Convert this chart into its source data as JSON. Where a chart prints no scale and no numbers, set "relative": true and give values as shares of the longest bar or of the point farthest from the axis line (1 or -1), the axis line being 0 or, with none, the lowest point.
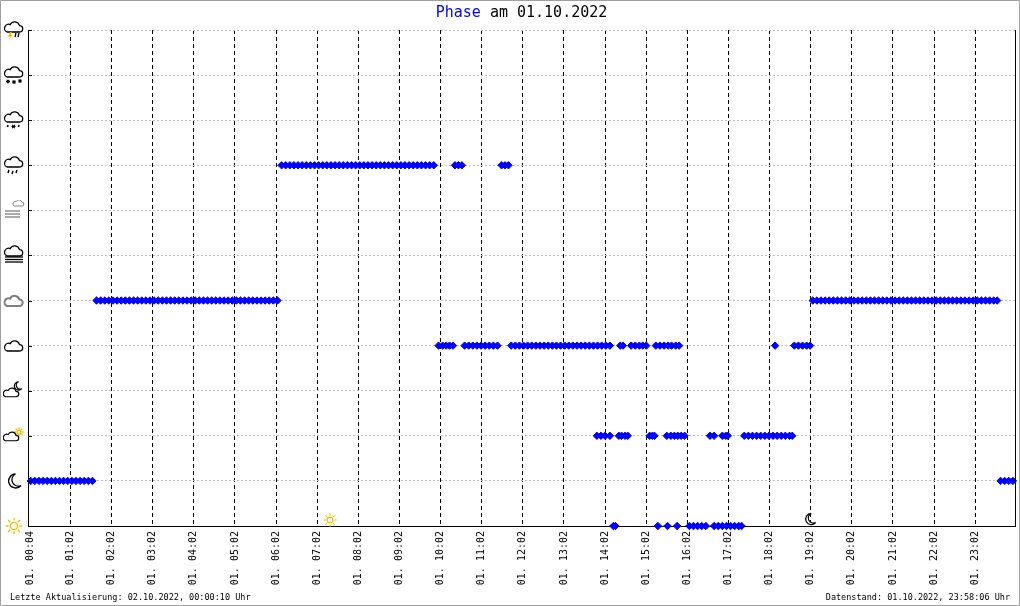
{
  "chart_data": {
    "type": "scatter",
    "title": "Phase am 01.10.2022",
    "color": "#0000ff",
    "marker": "diamond",
    "grid": true,
    "relative": true,
    "tick_labels": "x",
    "xlim": [
      "2022-10-01T00:00",
      "2022-10-02T00:00"
    ],
    "xticks": [
      {
        "value": "2022-10-01T00:04",
        "label": "01. 00:04"
      },
      {
        "value": "2022-10-01T01:02",
        "label": "01. 01:02"
      },
      {
        "value": "2022-10-01T02:02",
        "label": "01. 02:02"
      },
      {
        "value": "2022-10-01T03:02",
        "label": "01. 03:02"
      },
      {
        "value": "2022-10-01T04:02",
        "label": "01. 04:02"
      },
      {
        "value": "2022-10-01T05:02",
        "label": "01. 05:02"
      },
      {
        "value": "2022-10-01T06:02",
        "label": "01. 06:02"
      },
      {
        "value": "2022-10-01T07:02",
        "label": "01. 07:02"
      },
      {
        "value": "2022-10-01T08:02",
        "label": "01. 08:02"
      },
      {
        "value": "2022-10-01T09:02",
        "label": "01. 09:02"
      },
      {
        "value": "2022-10-01T10:02",
        "label": "01. 10:02"
      },
      {
        "value": "2022-10-01T11:02",
        "label": "01. 11:02"
      },
      {
        "value": "2022-10-01T12:02",
        "label": "01. 12:02"
      },
      {
        "value": "2022-10-01T13:02",
        "label": "01. 13:02"
      },
      {
        "value": "2022-10-01T14:02",
        "label": "01. 14:02"
      },
      {
        "value": "2022-10-01T15:02",
        "label": "01. 15:02"
      },
      {
        "value": "2022-10-01T16:02",
        "label": "01. 16:02"
      },
      {
        "value": "2022-10-01T17:02",
        "label": "01. 17:02"
      },
      {
        "value": "2022-10-01T18:02",
        "label": "01. 18:02"
      },
      {
        "value": "2022-10-01T19:02",
        "label": "01. 19:02"
      },
      {
        "value": "2022-10-01T20:02",
        "label": "01. 20:02"
      },
      {
        "value": "2022-10-01T21:02",
        "label": "01. 21:02"
      },
      {
        "value": "2022-10-01T22:02",
        "label": "01. 22:02"
      },
      {
        "value": "2022-10-01T23:02",
        "label": "01. 23:02"
      }
    ],
    "x": [
      "2022-10-01T00:04",
      "2022-10-01T00:10",
      "2022-10-01T00:16",
      "2022-10-01T00:22",
      "2022-10-01T00:28",
      "2022-10-01T00:34",
      "2022-10-01T00:40",
      "2022-10-01T00:46",
      "2022-10-01T00:52",
      "2022-10-01T00:58",
      "2022-10-01T01:04",
      "2022-10-01T01:10",
      "2022-10-01T01:16",
      "2022-10-01T01:22",
      "2022-10-01T01:28",
      "2022-10-01T01:34",
      "2022-10-01T01:40",
      "2022-10-01T01:46",
      "2022-10-01T01:52",
      "2022-10-01T01:58",
      "2022-10-01T02:04",
      "2022-10-01T02:10",
      "2022-10-01T02:16",
      "2022-10-01T02:22",
      "2022-10-01T02:28",
      "2022-10-01T02:34",
      "2022-10-01T02:40",
      "2022-10-01T02:46",
      "2022-10-01T02:52",
      "2022-10-01T02:58",
      "2022-10-01T03:04",
      "2022-10-01T03:10",
      "2022-10-01T03:16",
      "2022-10-01T03:22",
      "2022-10-01T03:28",
      "2022-10-01T03:34",
      "2022-10-01T03:40",
      "2022-10-01T03:46",
      "2022-10-01T03:52",
      "2022-10-01T03:58",
      "2022-10-01T04:04",
      "2022-10-01T04:10",
      "2022-10-01T04:16",
      "2022-10-01T04:22",
      "2022-10-01T04:28",
      "2022-10-01T04:34",
      "2022-10-01T04:40",
      "2022-10-01T04:46",
      "2022-10-01T04:52",
      "2022-10-01T04:58",
      "2022-10-01T05:04",
      "2022-10-01T05:10",
      "2022-10-01T05:16",
      "2022-10-01T05:22",
      "2022-10-01T05:28",
      "2022-10-01T05:34",
      "2022-10-01T05:40",
      "2022-10-01T05:46",
      "2022-10-01T05:52",
      "2022-10-01T05:58",
      "2022-10-01T06:04",
      "2022-10-01T06:10",
      "2022-10-01T06:16",
      "2022-10-01T06:22",
      "2022-10-01T06:28",
      "2022-10-01T06:34",
      "2022-10-01T06:40",
      "2022-10-01T06:46",
      "2022-10-01T06:52",
      "2022-10-01T06:58",
      "2022-10-01T07:04",
      "2022-10-01T07:10",
      "2022-10-01T07:16",
      "2022-10-01T07:22",
      "2022-10-01T07:28",
      "2022-10-01T07:34",
      "2022-10-01T07:40",
      "2022-10-01T07:46",
      "2022-10-01T07:52",
      "2022-10-01T07:58",
      "2022-10-01T08:04",
      "2022-10-01T08:10",
      "2022-10-01T08:16",
      "2022-10-01T08:22",
      "2022-10-01T08:28",
      "2022-10-01T08:34",
      "2022-10-01T08:40",
      "2022-10-01T08:46",
      "2022-10-01T08:52",
      "2022-10-01T08:58",
      "2022-10-01T09:04",
      "2022-10-01T09:10",
      "2022-10-01T09:16",
      "2022-10-01T09:22",
      "2022-10-01T09:28",
      "2022-10-01T09:34",
      "2022-10-01T09:40",
      "2022-10-01T09:46",
      "2022-10-01T09:52",
      "2022-10-01T09:59",
      "2022-10-01T10:05",
      "2022-10-01T10:10",
      "2022-10-01T10:15",
      "2022-10-01T10:20",
      "2022-10-01T10:23",
      "2022-10-01T10:28",
      "2022-10-01T10:33",
      "2022-10-01T10:37",
      "2022-10-01T10:43",
      "2022-10-01T10:49",
      "2022-10-01T10:55",
      "2022-10-01T11:01",
      "2022-10-01T11:07",
      "2022-10-01T11:13",
      "2022-10-01T11:19",
      "2022-10-01T11:25",
      "2022-10-01T11:31",
      "2022-10-01T11:36",
      "2022-10-01T11:41",
      "2022-10-01T11:45",
      "2022-10-01T11:51",
      "2022-10-01T11:57",
      "2022-10-01T12:03",
      "2022-10-01T12:09",
      "2022-10-01T12:15",
      "2022-10-01T12:21",
      "2022-10-01T12:27",
      "2022-10-01T12:33",
      "2022-10-01T12:39",
      "2022-10-01T12:45",
      "2022-10-01T12:51",
      "2022-10-01T12:57",
      "2022-10-01T13:03",
      "2022-10-01T13:09",
      "2022-10-01T13:15",
      "2022-10-01T13:21",
      "2022-10-01T13:27",
      "2022-10-01T13:33",
      "2022-10-01T13:39",
      "2022-10-01T13:45",
      "2022-10-01T13:51",
      "2022-10-01T13:57",
      "2022-10-01T14:03",
      "2022-10-01T14:09",
      "2022-10-01T13:50",
      "2022-10-01T13:56",
      "2022-10-01T14:02",
      "2022-10-01T14:09",
      "2022-10-01T14:14",
      "2022-10-01T14:17",
      "2022-10-01T14:22",
      "2022-10-01T14:26",
      "2022-10-01T14:31",
      "2022-10-01T14:35",
      "2022-10-01T14:24",
      "2022-10-01T14:28",
      "2022-10-01T14:40",
      "2022-10-01T14:46",
      "2022-10-01T14:52",
      "2022-10-01T14:57",
      "2022-10-01T15:02",
      "2022-10-01T15:07",
      "2022-10-01T15:11",
      "2022-10-01T15:14",
      "2022-10-01T15:16",
      "2022-10-01T15:22",
      "2022-10-01T15:28",
      "2022-10-01T15:34",
      "2022-10-01T15:39",
      "2022-10-01T15:45",
      "2022-10-01T15:50",
      "2022-10-01T15:19",
      "2022-10-01T15:32",
      "2022-10-01T15:38",
      "2022-10-01T15:43",
      "2022-10-01T15:48",
      "2022-10-01T15:53",
      "2022-10-01T15:58",
      "2022-10-01T15:33",
      "2022-10-01T15:47",
      "2022-10-01T16:05",
      "2022-10-01T16:11",
      "2022-10-01T16:17",
      "2022-10-01T16:23",
      "2022-10-01T16:29",
      "2022-10-01T16:35",
      "2022-10-01T16:41",
      "2022-10-01T16:41",
      "2022-10-01T16:47",
      "2022-10-01T16:53",
      "2022-10-01T16:59",
      "2022-10-01T17:05",
      "2022-10-01T17:11",
      "2022-10-01T17:17",
      "2022-10-01T17:21",
      "2022-10-01T16:53",
      "2022-10-01T16:58",
      "2022-10-01T17:01",
      "2022-10-01T17:25",
      "2022-10-01T17:31",
      "2022-10-01T17:37",
      "2022-10-01T17:43",
      "2022-10-01T17:49",
      "2022-10-01T17:55",
      "2022-10-01T18:01",
      "2022-10-01T18:07",
      "2022-10-01T18:13",
      "2022-10-01T18:19",
      "2022-10-01T18:25",
      "2022-10-01T18:31",
      "2022-10-01T18:35",
      "2022-10-01T18:10",
      "2022-10-01T18:38",
      "2022-10-01T18:44",
      "2022-10-01T18:50",
      "2022-10-01T18:56",
      "2022-10-01T19:01",
      "2022-10-01T19:05",
      "2022-10-01T19:11",
      "2022-10-01T19:17",
      "2022-10-01T19:23",
      "2022-10-01T19:29",
      "2022-10-01T19:35",
      "2022-10-01T19:41",
      "2022-10-01T19:47",
      "2022-10-01T19:53",
      "2022-10-01T19:59",
      "2022-10-01T20:05",
      "2022-10-01T20:11",
      "2022-10-01T20:17",
      "2022-10-01T20:23",
      "2022-10-01T20:29",
      "2022-10-01T20:35",
      "2022-10-01T20:41",
      "2022-10-01T20:47",
      "2022-10-01T20:53",
      "2022-10-01T20:59",
      "2022-10-01T21:05",
      "2022-10-01T21:11",
      "2022-10-01T21:17",
      "2022-10-01T21:23",
      "2022-10-01T21:29",
      "2022-10-01T21:35",
      "2022-10-01T21:41",
      "2022-10-01T21:47",
      "2022-10-01T21:53",
      "2022-10-01T21:59",
      "2022-10-01T22:05",
      "2022-10-01T22:11",
      "2022-10-01T22:17",
      "2022-10-01T22:23",
      "2022-10-01T22:29",
      "2022-10-01T22:35",
      "2022-10-01T22:41",
      "2022-10-01T22:47",
      "2022-10-01T22:53",
      "2022-10-01T22:59",
      "2022-10-01T23:05",
      "2022-10-01T23:11",
      "2022-10-01T23:17",
      "2022-10-01T23:23",
      "2022-10-01T23:29",
      "2022-10-01T23:34",
      "2022-10-01T23:39",
      "2022-10-01T23:45",
      "2022-10-01T23:51",
      "2022-10-01T23:57"
    ],
    "values": [
      0.125,
      0.125,
      0.125,
      0.125,
      0.125,
      0.125,
      0.125,
      0.125,
      0.125,
      0.125,
      0.125,
      0.125,
      0.125,
      0.125,
      0.125,
      0.125,
      0.625,
      0.625,
      0.625,
      0.625,
      0.625,
      0.625,
      0.625,
      0.625,
      0.625,
      0.625,
      0.625,
      0.625,
      0.625,
      0.625,
      0.625,
      0.625,
      0.625,
      0.625,
      0.625,
      0.625,
      0.625,
      0.625,
      0.625,
      0.625,
      0.625,
      0.625,
      0.625,
      0.625,
      0.625,
      0.625,
      0.625,
      0.625,
      0.625,
      0.625,
      0.625,
      0.625,
      0.625,
      0.625,
      0.625,
      0.625,
      0.625,
      0.625,
      0.625,
      0.625,
      0.625,
      1,
      1,
      1,
      1,
      1,
      1,
      1,
      1,
      1,
      1,
      1,
      1,
      1,
      1,
      1,
      1,
      1,
      1,
      1,
      1,
      1,
      1,
      1,
      1,
      1,
      1,
      1,
      1,
      1,
      1,
      1,
      1,
      1,
      1,
      1,
      1,
      1,
      1,
      0.5,
      0.5,
      0.5,
      0.5,
      0.5,
      1,
      1,
      1,
      0.5,
      0.5,
      0.5,
      0.5,
      0.5,
      0.5,
      0.5,
      0.5,
      0.5,
      1,
      1,
      1,
      0.5,
      0.5,
      0.5,
      0.5,
      0.5,
      0.5,
      0.5,
      0.5,
      0.5,
      0.5,
      0.5,
      0.5,
      0.5,
      0.5,
      0.5,
      0.5,
      0.5,
      0.5,
      0.5,
      0.5,
      0.5,
      0.5,
      0.5,
      0.5,
      0.5,
      0.25,
      0.25,
      0.25,
      0.25,
      0,
      0,
      0.25,
      0.25,
      0.25,
      0.25,
      0.5,
      0.5,
      0.5,
      0.5,
      0.5,
      0.5,
      0.5,
      0.25,
      0.25,
      0.25,
      0.5,
      0.5,
      0.5,
      0.5,
      0.5,
      0.5,
      0.5,
      0,
      0.25,
      0.25,
      0.25,
      0.25,
      0.25,
      0.25,
      0,
      0,
      0,
      0,
      0,
      0,
      0,
      0.25,
      0.25,
      0,
      0,
      0,
      0,
      0,
      0,
      0,
      0,
      0.25,
      0.25,
      0.25,
      0.25,
      0.25,
      0.25,
      0.25,
      0.25,
      0.25,
      0.25,
      0.25,
      0.25,
      0.25,
      0.25,
      0.25,
      0.25,
      0.5,
      0.5,
      0.5,
      0.5,
      0.5,
      0.5,
      0.625,
      0.625,
      0.625,
      0.625,
      0.625,
      0.625,
      0.625,
      0.625,
      0.625,
      0.625,
      0.625,
      0.625,
      0.625,
      0.625,
      0.625,
      0.625,
      0.625,
      0.625,
      0.625,
      0.625,
      0.625,
      0.625,
      0.625,
      0.625,
      0.625,
      0.625,
      0.625,
      0.625,
      0.625,
      0.625,
      0.625,
      0.625,
      0.625,
      0.625,
      0.625,
      0.625,
      0.625,
      0.625,
      0.625,
      0.625,
      0.625,
      0.625,
      0.625,
      0.625,
      0.625,
      0.625,
      0.125,
      0.125,
      0.125,
      0.125
    ],
    "annotations": [
      "Letzte Aktualisierung: 02.10.2022, 00:00:10 Uhr",
      "Datenstand: 01.10.2022, 23:58:06 Uhr"
    ]
  }
}
